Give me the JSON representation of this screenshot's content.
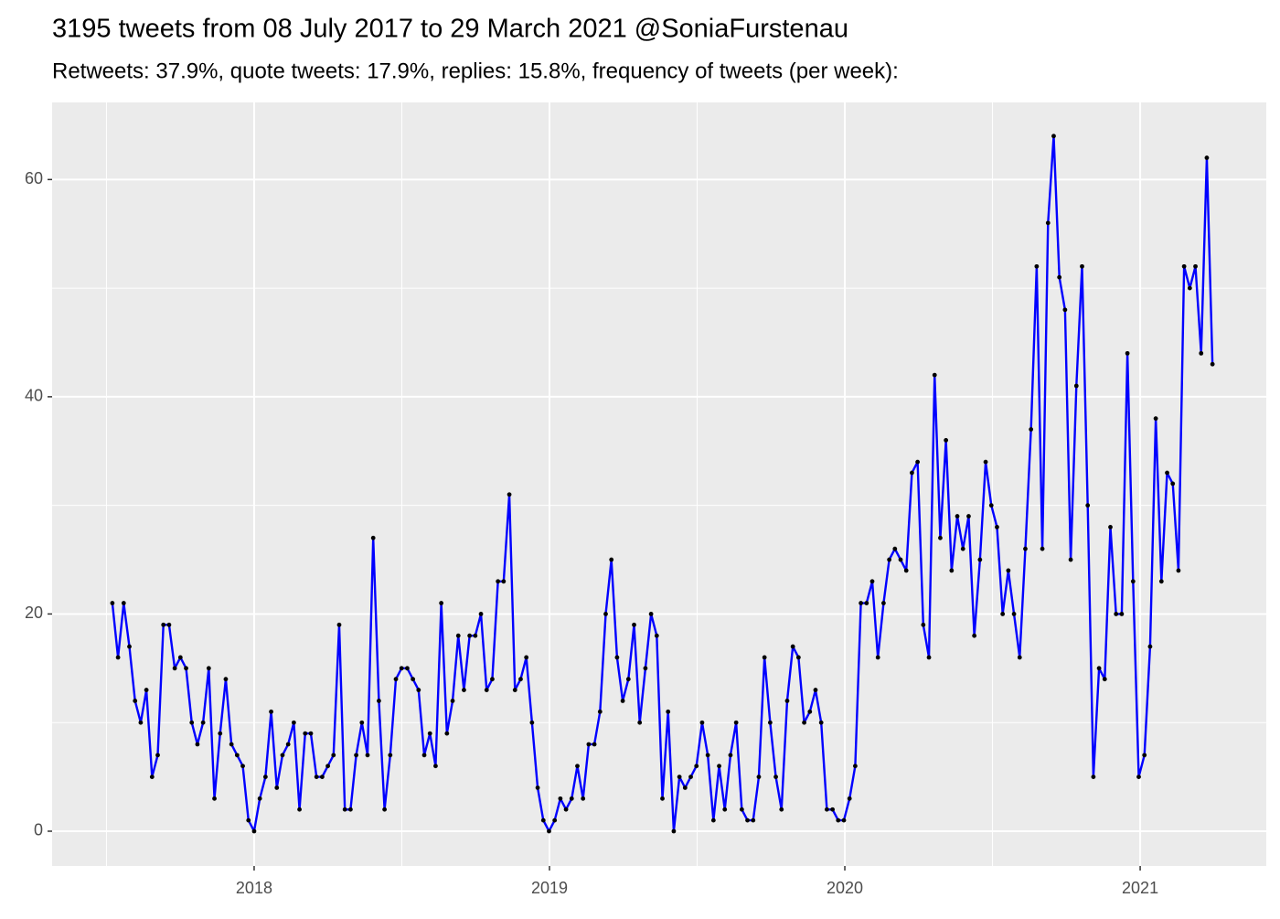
{
  "chart_data": {
    "type": "line",
    "title": "3195 tweets from 08 July 2017 to 29 March 2021 @SoniaFurstenau",
    "subtitle": "Retweets: 37.9%, quote tweets: 17.9%, replies: 15.8%, frequency of tweets (per week):",
    "x": [
      2017.52,
      2017.5392,
      2017.5584,
      2017.5776,
      2017.5968,
      2017.616,
      2017.6352,
      2017.6544,
      2017.6736,
      2017.6928,
      2017.712,
      2017.7312,
      2017.7504,
      2017.7696,
      2017.7888,
      2017.808,
      2017.8272,
      2017.8464,
      2017.8656,
      2017.8848,
      2017.904,
      2017.9232,
      2017.9424,
      2017.9616,
      2017.9808,
      2018,
      2018.0192,
      2018.0384,
      2018.0576,
      2018.0768,
      2018.096,
      2018.1152,
      2018.1344,
      2018.1536,
      2018.1728,
      2018.192,
      2018.2112,
      2018.2304,
      2018.2496,
      2018.2688,
      2018.288,
      2018.3072,
      2018.3264,
      2018.3456,
      2018.3648,
      2018.384,
      2018.4032,
      2018.4224,
      2018.4416,
      2018.4608,
      2018.48,
      2018.4992,
      2018.5184,
      2018.5376,
      2018.5568,
      2018.576,
      2018.5952,
      2018.6144,
      2018.6336,
      2018.6528,
      2018.672,
      2018.6912,
      2018.7104,
      2018.7296,
      2018.7488,
      2018.768,
      2018.7872,
      2018.8064,
      2018.8256,
      2018.8448,
      2018.864,
      2018.8832,
      2018.9024,
      2018.9216,
      2018.9408,
      2018.96,
      2018.9792,
      2018.9984,
      2019.0176,
      2019.0368,
      2019.056,
      2019.0752,
      2019.0944,
      2019.1136,
      2019.1328,
      2019.152,
      2019.1712,
      2019.1904,
      2019.2096,
      2019.2288,
      2019.248,
      2019.2672,
      2019.2864,
      2019.3056,
      2019.3248,
      2019.344,
      2019.3632,
      2019.3824,
      2019.4016,
      2019.4208,
      2019.44,
      2019.4592,
      2019.4784,
      2019.4976,
      2019.5168,
      2019.536,
      2019.5552,
      2019.5744,
      2019.5936,
      2019.6128,
      2019.632,
      2019.6512,
      2019.6704,
      2019.6896,
      2019.7088,
      2019.728,
      2019.7472,
      2019.7664,
      2019.7856,
      2019.8048,
      2019.824,
      2019.8432,
      2019.8624,
      2019.8816,
      2019.9008,
      2019.92,
      2019.9392,
      2019.9584,
      2019.9776,
      2019.9968,
      2020.016,
      2020.0352,
      2020.0544,
      2020.0736,
      2020.0928,
      2020.112,
      2020.1312,
      2020.1504,
      2020.1696,
      2020.1888,
      2020.208,
      2020.2272,
      2020.2464,
      2020.2656,
      2020.2848,
      2020.304,
      2020.3232,
      2020.3424,
      2020.3616,
      2020.3808,
      2020.4,
      2020.4192,
      2020.4384,
      2020.4576,
      2020.4768,
      2020.496,
      2020.5152,
      2020.5344,
      2020.5536,
      2020.5728,
      2020.592,
      2020.6112,
      2020.6304,
      2020.6496,
      2020.6688,
      2020.688,
      2020.7072,
      2020.7264,
      2020.7456,
      2020.7648,
      2020.784,
      2020.8032,
      2020.8224,
      2020.8416,
      2020.8608,
      2020.88,
      2020.8992,
      2020.9184,
      2020.9376,
      2020.9568,
      2020.976,
      2020.9952,
      2021.0144,
      2021.0336,
      2021.0528,
      2021.072,
      2021.0912,
      2021.1104,
      2021.1296,
      2021.1488,
      2021.168,
      2021.1872,
      2021.2064,
      2021.2256,
      2021.2448
    ],
    "values": [
      21,
      16,
      21,
      17,
      12,
      10,
      13,
      5,
      7,
      19,
      19,
      15,
      16,
      15,
      10,
      8,
      10,
      15,
      3,
      9,
      14,
      8,
      7,
      6,
      1,
      0,
      3,
      5,
      11,
      4,
      7,
      8,
      10,
      2,
      9,
      9,
      5,
      5,
      6,
      7,
      19,
      2,
      2,
      7,
      10,
      7,
      27,
      12,
      2,
      7,
      14,
      15,
      15,
      14,
      13,
      7,
      9,
      6,
      21,
      9,
      12,
      18,
      13,
      18,
      18,
      20,
      13,
      14,
      23,
      23,
      31,
      13,
      14,
      16,
      10,
      4,
      1,
      0,
      1,
      3,
      2,
      3,
      6,
      3,
      8,
      8,
      11,
      20,
      25,
      16,
      12,
      14,
      19,
      10,
      15,
      20,
      18,
      3,
      11,
      0,
      5,
      4,
      5,
      6,
      10,
      7,
      1,
      6,
      2,
      7,
      10,
      2,
      1,
      1,
      5,
      16,
      10,
      5,
      2,
      12,
      17,
      16,
      10,
      11,
      13,
      10,
      2,
      2,
      1,
      1,
      3,
      6,
      21,
      21,
      23,
      16,
      21,
      25,
      26,
      25,
      24,
      33,
      34,
      19,
      16,
      42,
      27,
      36,
      24,
      29,
      26,
      29,
      18,
      25,
      34,
      30,
      28,
      20,
      24,
      20,
      16,
      26,
      37,
      52,
      26,
      56,
      64,
      51,
      48,
      25,
      41,
      52,
      30,
      5,
      15,
      14,
      28,
      20,
      20,
      44,
      23,
      5,
      7,
      17,
      38,
      23,
      33,
      32,
      24,
      52,
      50,
      52,
      44,
      62,
      43
    ],
    "color": "#0000ff",
    "point_color": "#000000",
    "xlim": [
      2017.316,
      2021.427
    ],
    "xticks": [
      2018,
      2019,
      2020,
      2021
    ],
    "ylim": [
      -3.2,
      67.1
    ],
    "yticks": [
      0,
      20,
      40,
      60
    ],
    "grid": true,
    "minor_grid": true,
    "panel_background": "#ebebeb"
  }
}
